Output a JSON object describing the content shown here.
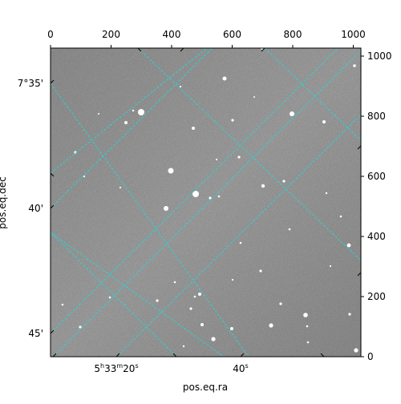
{
  "chart_data": {
    "type": "image",
    "xlabel": "pos.eq.ra",
    "ylabel": "pos.eq.dec",
    "pixel_x_ticks": [
      "0",
      "200",
      "400",
      "600",
      "800",
      "1000"
    ],
    "pixel_y_ticks": [
      "0",
      "200",
      "400",
      "600",
      "800",
      "1000"
    ],
    "ra_tick_labels": [
      {
        "h": "5",
        "m": "33",
        "s": "20"
      },
      {
        "s": "40"
      }
    ],
    "dec_tick_labels": [
      "7°35'",
      "40'",
      "45'"
    ],
    "grid_color": "#2ad4d4",
    "background_color": "#7a7a7a",
    "star_color": "#ffffff"
  }
}
